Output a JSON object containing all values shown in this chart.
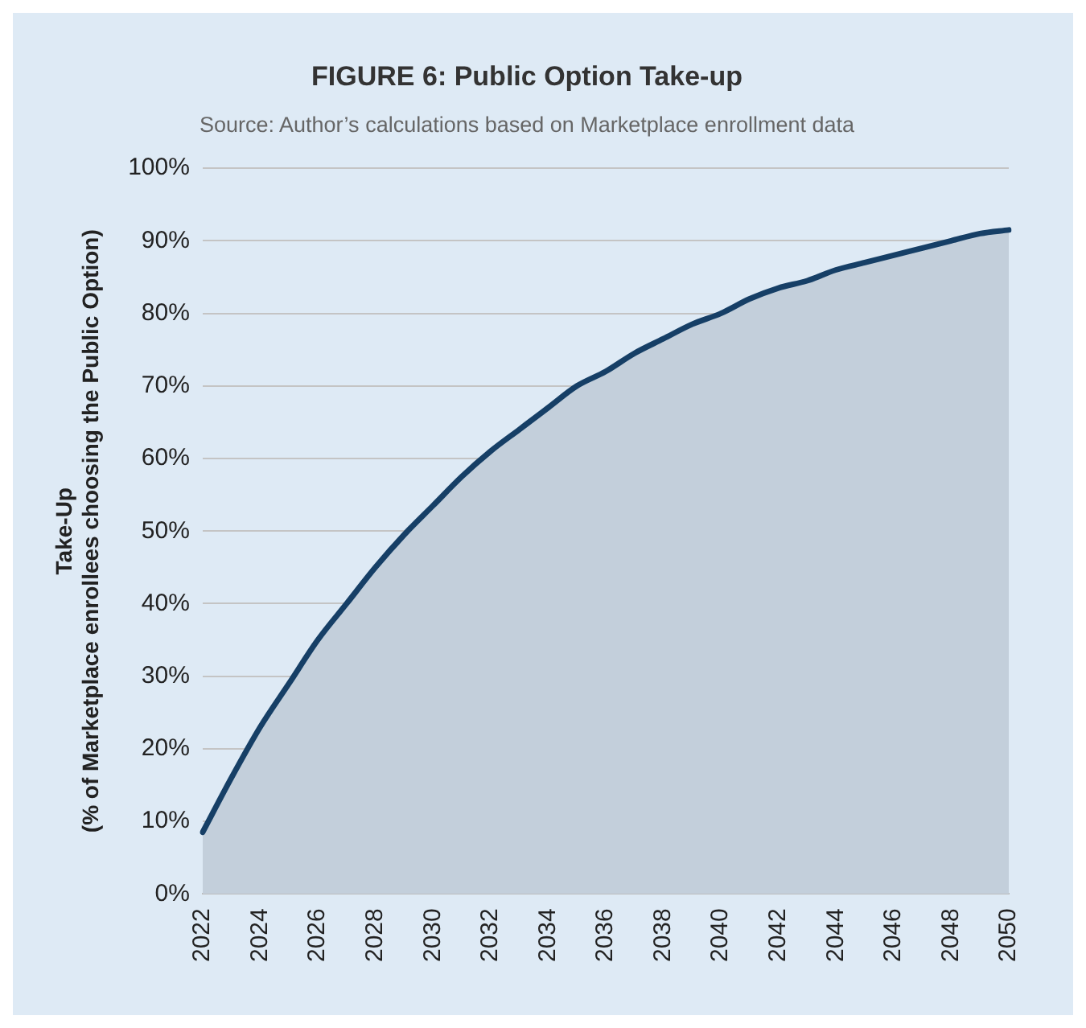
{
  "chart_data": {
    "type": "area",
    "title": "FIGURE 6: Public Option Take-up",
    "subtitle": "Source: Author’s calculations based on Marketplace enrollment data",
    "ylabel": "Take-Up\n(% of Marketplace enrollees choosing the Public Option)",
    "categories": [
      "2022",
      null,
      "2024",
      null,
      "2026",
      null,
      "2028",
      null,
      "2030",
      null,
      "2032",
      null,
      "2034",
      null,
      "2036",
      null,
      "2038",
      null,
      "2040",
      null,
      "2042",
      null,
      "2044",
      null,
      "2046",
      null,
      "2048",
      null,
      "2050"
    ],
    "series": [
      {
        "color": "#163f66",
        "values": [
          8.5,
          16,
          23,
          29,
          35,
          40,
          45,
          49.5,
          53.5,
          57.5,
          61,
          64,
          67,
          70,
          72,
          74.5,
          76.5,
          78.5,
          80,
          82,
          83.5,
          84.5,
          86,
          87,
          88,
          89,
          90,
          91,
          91.5
        ]
      }
    ],
    "ylim": [
      0,
      100
    ],
    "yticks": [
      {
        "value": 0,
        "label": "0%"
      },
      {
        "value": 10,
        "label": "10%"
      },
      {
        "value": 20,
        "label": "20%"
      },
      {
        "value": 30,
        "label": "30%"
      },
      {
        "value": 40,
        "label": "40%"
      },
      {
        "value": 50,
        "label": "50%"
      },
      {
        "value": 60,
        "label": "60%"
      },
      {
        "value": 70,
        "label": "70%"
      },
      {
        "value": 80,
        "label": "80%"
      },
      {
        "value": 90,
        "label": "90%"
      },
      {
        "value": 100,
        "label": "100%"
      }
    ],
    "grid": "y",
    "legend": false,
    "marker": "none",
    "line_style": "solid"
  }
}
